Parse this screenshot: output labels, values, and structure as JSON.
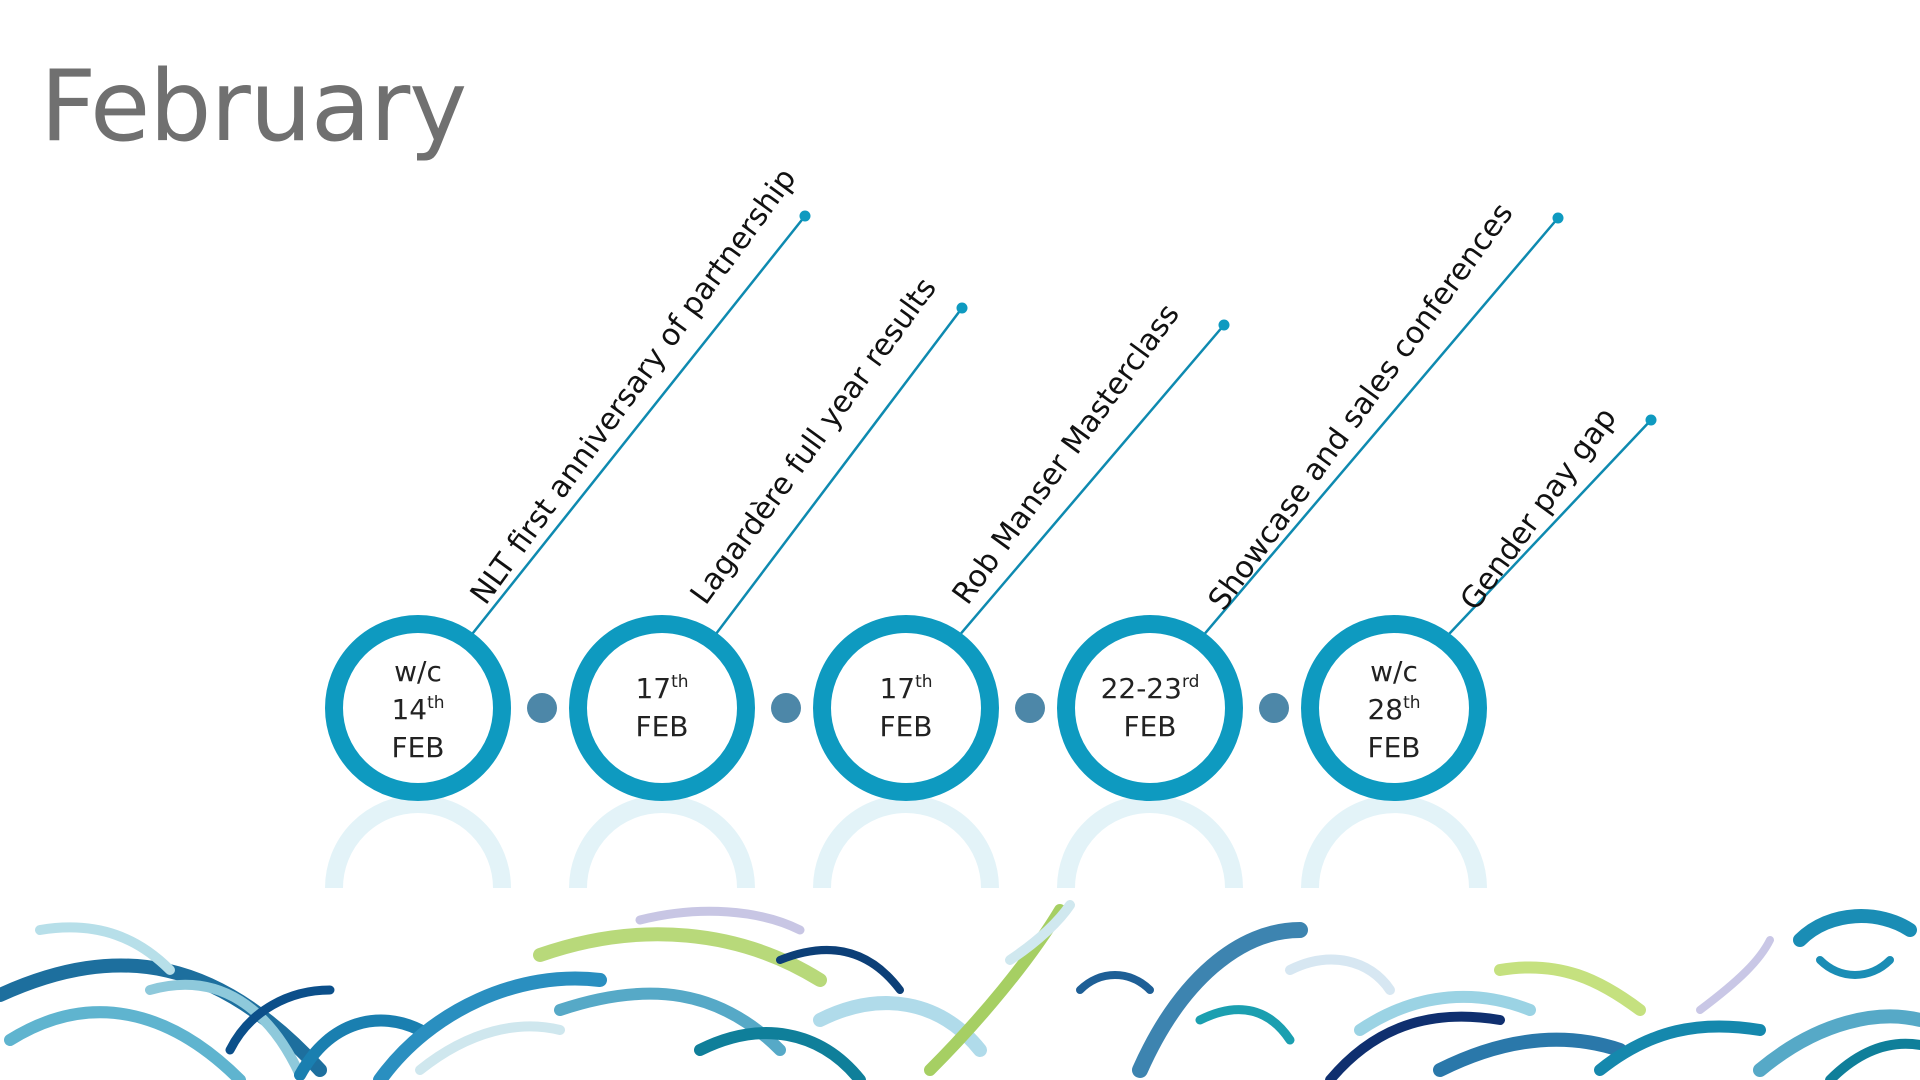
{
  "slide": {
    "title": "February"
  },
  "colors": {
    "ring": "#0e9ac0",
    "connector_dot": "#4d87a8",
    "line": "#0e8ab0",
    "title": "#707070"
  },
  "events": [
    {
      "date_lines": [
        {
          "text": "w/c"
        },
        {
          "text": "14",
          "sup": "th"
        },
        {
          "text": "FEB"
        }
      ],
      "label": "NLT first anniversary of partnership"
    },
    {
      "date_lines": [
        {
          "text": "17",
          "sup": "th"
        },
        {
          "text": "FEB"
        }
      ],
      "label": "Lagardère full year results"
    },
    {
      "date_lines": [
        {
          "text": "17",
          "sup": "th"
        },
        {
          "text": "FEB"
        }
      ],
      "label": "Rob Manser Masterclass"
    },
    {
      "date_lines": [
        {
          "text": "22-23",
          "sup": "rd"
        },
        {
          "text": "FEB"
        }
      ],
      "label": "Showcase and sales conferences"
    },
    {
      "date_lines": [
        {
          "text": "w/c"
        },
        {
          "text": "28",
          "sup": "th"
        },
        {
          "text": "FEB"
        }
      ],
      "label": "Gender pay gap"
    }
  ]
}
